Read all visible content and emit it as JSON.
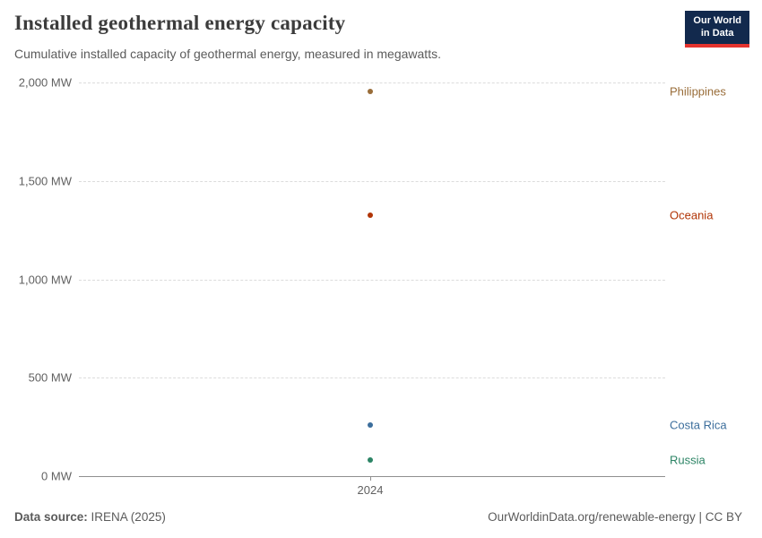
{
  "header": {
    "title": "Installed geothermal energy capacity",
    "subtitle": "Cumulative installed capacity of geothermal energy, measured in megawatts.",
    "logo": {
      "line1": "Our World",
      "line2": "in Data"
    }
  },
  "chart_data": {
    "type": "scatter",
    "title": "Installed geothermal energy capacity",
    "xlabel": "",
    "ylabel": "MW",
    "ylim": [
      0,
      2000
    ],
    "grid": true,
    "legend_position": "right-inline-labels",
    "x_tick_label": "2024",
    "yticks": [
      {
        "value": 2000,
        "label": "2,000 MW"
      },
      {
        "value": 1500,
        "label": "1,500 MW"
      },
      {
        "value": 1000,
        "label": "1,000 MW"
      },
      {
        "value": 500,
        "label": "500 MW"
      },
      {
        "value": 0,
        "label": "0 MW"
      }
    ],
    "series": [
      {
        "name": "Philippines",
        "x": "2024",
        "value": 1955,
        "color": "#996D39"
      },
      {
        "name": "Oceania",
        "x": "2024",
        "value": 1325,
        "color": "#B13507"
      },
      {
        "name": "Costa Rica",
        "x": "2024",
        "value": 260,
        "color": "#3C6E9C"
      },
      {
        "name": "Russia",
        "x": "2024",
        "value": 80,
        "color": "#2C8465"
      }
    ]
  },
  "footer": {
    "source_label": "Data source:",
    "source_value": "IRENA (2025)",
    "attribution": "OurWorldinData.org/renewable-energy | CC BY"
  },
  "colors": {
    "logo_background": "#12294D",
    "logo_accent": "#E5332E",
    "title_text": "#3C3C3C",
    "subtitle_text": "#5B5B5B",
    "tick_text": "#616161",
    "gridline": "#DCDCDC",
    "axis_line": "#8F8F8F"
  }
}
